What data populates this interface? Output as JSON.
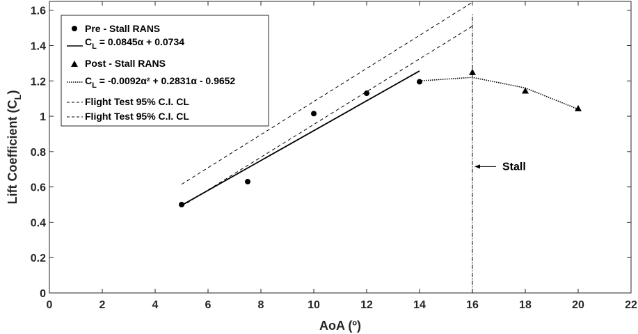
{
  "chart_data": {
    "type": "scatter",
    "xlabel": "AoA (º)",
    "ylabel_main": "Lift Coefficient (C",
    "ylabel_sub": "L",
    "ylabel_end": ")",
    "xlim": [
      0,
      22
    ],
    "ylim": [
      0,
      1.65
    ],
    "xticks": [
      0,
      2,
      4,
      6,
      8,
      10,
      12,
      14,
      16,
      18,
      20,
      22
    ],
    "yticks": [
      0,
      0.2,
      0.4,
      0.6,
      0.8,
      1,
      1.2,
      1.4,
      1.6
    ],
    "xtick_labels": [
      "0",
      "2",
      "4",
      "6",
      "8",
      "10",
      "12",
      "14",
      "16",
      "18",
      "20",
      "22"
    ],
    "ytick_labels": [
      "0",
      "0.2",
      "0.4",
      "0.6",
      "0.8",
      "1",
      "1.2",
      "1.4",
      "1.6"
    ],
    "grid": false,
    "legend_position": "top-left",
    "series": [
      {
        "name": "Pre - Stall RANS",
        "kind": "marker-circle",
        "x": [
          5,
          7.5,
          10,
          12,
          14
        ],
        "y": [
          0.5,
          0.63,
          1.015,
          1.13,
          1.195
        ]
      },
      {
        "name_prefix": "C",
        "name_sub": "L",
        "name_suffix": " = 0.0845α + 0.0734",
        "kind": "line-solid",
        "x": [
          5,
          14
        ],
        "y": [
          0.4959,
          1.2564
        ]
      },
      {
        "name": "Post - Stall RANS",
        "kind": "marker-triangle",
        "x": [
          16,
          18,
          20
        ],
        "y": [
          1.245,
          1.14,
          1.04
        ]
      },
      {
        "name_prefix": "C",
        "name_sub": "L",
        "name_suffix": " = -0.0092α² + 0.2831α - 0.9652",
        "kind": "line-dotted",
        "x": [
          14,
          16,
          18,
          20
        ],
        "y": [
          1.2,
          1.22,
          1.16,
          1.04
        ]
      },
      {
        "name": "Flight Test 95% C.I. CL",
        "kind": "line-dashed",
        "x": [
          5,
          16
        ],
        "y": [
          0.615,
          1.645
        ]
      },
      {
        "name": "Flight Test 95% C.I. CL",
        "kind": "line-dashed",
        "x": [
          5,
          16
        ],
        "y": [
          0.49,
          1.51
        ]
      }
    ],
    "stall_line": {
      "x": 16,
      "y": [
        0,
        1.58
      ]
    },
    "annotation": {
      "text": "Stall",
      "arrow_to_x": 16,
      "y": 0.715
    }
  }
}
